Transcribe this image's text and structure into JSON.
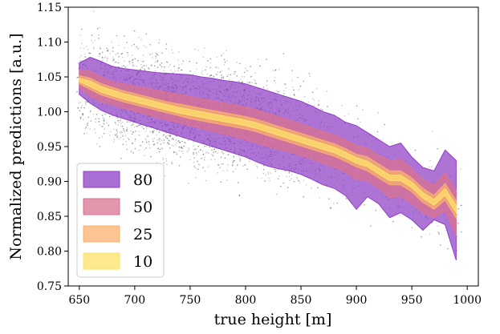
{
  "chart_data": {
    "type": "area",
    "xlabel": "true height [m]",
    "ylabel": "Normalized predictions [a.u.]",
    "xlim": [
      640,
      1010
    ],
    "ylim": [
      0.75,
      1.15
    ],
    "xticks": [
      650,
      700,
      750,
      800,
      850,
      900,
      950,
      1000
    ],
    "yticks": [
      0.75,
      0.8,
      0.85,
      0.9,
      0.95,
      1.0,
      1.05,
      1.1,
      1.15
    ],
    "xtick_labels": [
      "650",
      "700",
      "750",
      "800",
      "850",
      "900",
      "950",
      "1000"
    ],
    "ytick_labels": [
      "0.75",
      "0.80",
      "0.85",
      "0.90",
      "0.95",
      "1.00",
      "1.05",
      "1.10",
      "1.15"
    ],
    "grid": false,
    "legend_position": "lower-left",
    "x": [
      650,
      660,
      670,
      680,
      690,
      700,
      710,
      720,
      730,
      740,
      750,
      760,
      770,
      780,
      790,
      800,
      810,
      820,
      830,
      840,
      850,
      860,
      870,
      880,
      890,
      900,
      910,
      920,
      930,
      940,
      950,
      960,
      970,
      980,
      990
    ],
    "median": [
      1.045,
      1.04,
      1.032,
      1.027,
      1.022,
      1.018,
      1.014,
      1.01,
      1.006,
      1.002,
      0.999,
      0.996,
      0.993,
      0.99,
      0.987,
      0.984,
      0.98,
      0.975,
      0.97,
      0.965,
      0.96,
      0.955,
      0.95,
      0.945,
      0.938,
      0.93,
      0.925,
      0.915,
      0.905,
      0.905,
      0.895,
      0.88,
      0.87,
      0.885,
      0.86
    ],
    "scatter": {
      "color": "#000000",
      "approx_point_count": 5000,
      "x_range": [
        648,
        995
      ],
      "y_range": [
        0.76,
        1.15
      ]
    },
    "series": [
      {
        "name": "80",
        "color": "#8e3fc6",
        "upper": [
          1.07,
          1.078,
          1.072,
          1.065,
          1.062,
          1.06,
          1.058,
          1.056,
          1.055,
          1.054,
          1.053,
          1.05,
          1.048,
          1.045,
          1.043,
          1.04,
          1.035,
          1.03,
          1.025,
          1.02,
          1.015,
          1.008,
          1.0,
          0.995,
          0.985,
          0.98,
          0.97,
          0.96,
          0.95,
          0.955,
          0.935,
          0.92,
          0.915,
          0.945,
          0.93
        ],
        "lower": [
          1.025,
          1.012,
          1.002,
          0.995,
          0.99,
          0.985,
          0.98,
          0.975,
          0.97,
          0.965,
          0.96,
          0.955,
          0.95,
          0.945,
          0.94,
          0.935,
          0.928,
          0.922,
          0.918,
          0.915,
          0.91,
          0.903,
          0.895,
          0.89,
          0.88,
          0.86,
          0.878,
          0.868,
          0.848,
          0.855,
          0.845,
          0.83,
          0.845,
          0.838,
          0.787
        ]
      },
      {
        "name": "50",
        "color": "#d9738f",
        "upper": [
          1.06,
          1.058,
          1.05,
          1.043,
          1.04,
          1.037,
          1.034,
          1.031,
          1.028,
          1.025,
          1.022,
          1.019,
          1.016,
          1.013,
          1.01,
          1.007,
          1.003,
          0.998,
          0.993,
          0.988,
          0.983,
          0.977,
          0.972,
          0.967,
          0.96,
          0.952,
          0.948,
          0.938,
          0.93,
          0.932,
          0.918,
          0.903,
          0.895,
          0.912,
          0.888
        ],
        "lower": [
          1.035,
          1.022,
          1.014,
          1.01,
          1.005,
          1.001,
          0.996,
          0.992,
          0.988,
          0.984,
          0.98,
          0.976,
          0.972,
          0.968,
          0.964,
          0.96,
          0.955,
          0.95,
          0.946,
          0.942,
          0.937,
          0.932,
          0.926,
          0.92,
          0.913,
          0.903,
          0.902,
          0.89,
          0.877,
          0.878,
          0.868,
          0.855,
          0.848,
          0.858,
          0.822
        ]
      },
      {
        "name": "25",
        "color": "#f9b06e",
        "upper": [
          1.052,
          1.048,
          1.04,
          1.035,
          1.03,
          1.026,
          1.022,
          1.018,
          1.014,
          1.011,
          1.008,
          1.005,
          1.002,
          0.999,
          0.996,
          0.993,
          0.989,
          0.984,
          0.979,
          0.974,
          0.969,
          0.964,
          0.959,
          0.954,
          0.947,
          0.939,
          0.935,
          0.925,
          0.915,
          0.915,
          0.905,
          0.89,
          0.88,
          0.897,
          0.872
        ],
        "lower": [
          1.04,
          1.032,
          1.024,
          1.019,
          1.014,
          1.01,
          1.006,
          1.002,
          0.998,
          0.994,
          0.99,
          0.987,
          0.984,
          0.981,
          0.978,
          0.975,
          0.971,
          0.966,
          0.961,
          0.956,
          0.951,
          0.946,
          0.941,
          0.936,
          0.929,
          0.921,
          0.915,
          0.905,
          0.895,
          0.895,
          0.885,
          0.87,
          0.86,
          0.873,
          0.847
        ]
      },
      {
        "name": "10",
        "color": "#fde26a",
        "upper": [
          1.048,
          1.044,
          1.036,
          1.031,
          1.026,
          1.022,
          1.018,
          1.014,
          1.01,
          1.006,
          1.003,
          1.0,
          0.997,
          0.994,
          0.991,
          0.988,
          0.984,
          0.979,
          0.974,
          0.969,
          0.964,
          0.959,
          0.954,
          0.949,
          0.942,
          0.934,
          0.929,
          0.919,
          0.909,
          0.909,
          0.899,
          0.884,
          0.874,
          0.89,
          0.865
        ],
        "lower": [
          1.043,
          1.036,
          1.028,
          1.023,
          1.018,
          1.014,
          1.01,
          1.006,
          1.002,
          0.998,
          0.995,
          0.992,
          0.989,
          0.986,
          0.983,
          0.98,
          0.976,
          0.971,
          0.966,
          0.961,
          0.956,
          0.951,
          0.946,
          0.941,
          0.934,
          0.926,
          0.921,
          0.911,
          0.901,
          0.901,
          0.891,
          0.876,
          0.866,
          0.88,
          0.855
        ]
      }
    ]
  }
}
